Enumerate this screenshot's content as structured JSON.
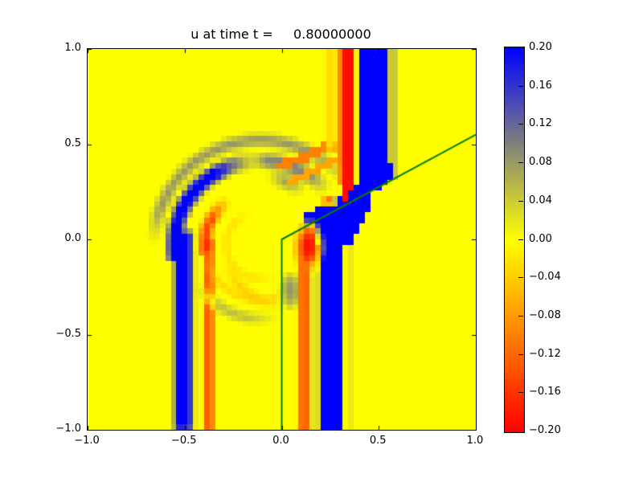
{
  "figure": {
    "background": "#ffffff",
    "frame_color": "#000000"
  },
  "chart_data": {
    "type": "heatmap",
    "title": "u at time t =     0.80000000",
    "xlabel": "",
    "ylabel": "",
    "xlim": [
      -1,
      1
    ],
    "ylim": [
      -1,
      1
    ],
    "grid": false,
    "xticks": {
      "values": [
        -1,
        -0.5,
        0,
        0.5,
        1
      ],
      "labels": [
        "−1.0",
        "−0.5",
        "0.0",
        "0.5",
        "1.0"
      ]
    },
    "yticks": {
      "values": [
        1,
        0.5,
        0,
        -0.5,
        -1
      ],
      "labels": [
        "1.0",
        "0.5",
        "0.0",
        "−0.5",
        "−1.0"
      ]
    },
    "colorbar": {
      "position": "right",
      "vmin": -0.2,
      "vmax": 0.2,
      "tick_values": [
        0.2,
        0.16,
        0.12,
        0.08,
        0.04,
        0,
        -0.04,
        -0.08,
        -0.12,
        -0.16,
        -0.2
      ],
      "tick_labels": [
        "0.20",
        "0.16",
        "0.12",
        "0.08",
        "0.04",
        "0.00",
        "−0.04",
        "−0.08",
        "−0.12",
        "−0.16",
        "−0.20"
      ],
      "gradient_stops": [
        [
          0,
          "#0000ff"
        ],
        [
          0.5,
          "#ffff00"
        ],
        [
          1,
          "#ff0000"
        ]
      ]
    },
    "field": {
      "resolution": 70,
      "background_value": 0,
      "features": [
        {
          "t": "ring",
          "c": [
            -0.11,
            -0.03
          ],
          "r": [
            0.5,
            0.6
          ],
          "a": [
            35,
            180
          ],
          "v": 0.08,
          "f": 0.045,
          "af": [
            25,
            20
          ]
        },
        {
          "t": "ring",
          "c": [
            -0.11,
            -0.03
          ],
          "r": [
            0.385,
            0.5
          ],
          "a": [
            38,
            98
          ],
          "v": 0.095,
          "f": 0.045,
          "af": [
            18,
            12
          ]
        },
        {
          "t": "ring",
          "c": [
            -0.11,
            -0.03
          ],
          "r": [
            0.385,
            0.5
          ],
          "a": [
            92,
            190
          ],
          "v": 0.2,
          "f": 0.04,
          "af": [
            30,
            0
          ]
        },
        {
          "t": "band",
          "x0": -0.57,
          "x1": -0.44,
          "y0": -1.02,
          "y1": 0.06,
          "v": 0.2,
          "f": 0.04
        },
        {
          "t": "ring",
          "c": [
            -0.11,
            -0.03
          ],
          "r": [
            0.24,
            0.335
          ],
          "a": [
            122,
            188
          ],
          "v": -0.14,
          "f": 0.04,
          "af": [
            30,
            0
          ]
        },
        {
          "t": "band",
          "x0": -0.41,
          "x1": -0.34,
          "y0": -1.02,
          "y1": 0.02,
          "v": -0.18,
          "f": 0.035
        },
        {
          "t": "ring",
          "c": [
            -0.11,
            -0.03
          ],
          "r": [
            0.14,
            0.21
          ],
          "a": [
            100,
            300
          ],
          "v": -0.04,
          "f": 0.05,
          "af": [
            40,
            40
          ]
        },
        {
          "t": "ring",
          "c": [
            -0.11,
            -0.03
          ],
          "r": [
            0.26,
            0.32
          ],
          "a": [
            190,
            330
          ],
          "v": -0.05,
          "f": 0.04,
          "af": [
            30,
            30
          ]
        },
        {
          "t": "ring",
          "c": [
            0.05,
            0.02
          ],
          "r": [
            0.33,
            0.42
          ],
          "a": [
            200,
            265
          ],
          "v": -0.045,
          "f": 0.05,
          "af": [
            25,
            25
          ]
        },
        {
          "t": "ring",
          "c": [
            -0.11,
            -0.03
          ],
          "r": [
            0.34,
            0.43
          ],
          "a": [
            210,
            285
          ],
          "v": 0.06,
          "f": 0.05,
          "af": [
            25,
            25
          ]
        },
        {
          "t": "ring",
          "c": [
            -0.11,
            -0.03
          ],
          "r": [
            0.3,
            0.42
          ],
          "a": [
            50,
            85
          ],
          "v": 0.07,
          "f": 0.05,
          "af": [
            15,
            15
          ]
        },
        {
          "t": "blob",
          "c": [
            0.05,
            -0.27
          ],
          "rx": 0.07,
          "ry": 0.11,
          "v": 0.085
        },
        {
          "t": "poly",
          "pts": [
            [
              -0.03,
              0.4
            ],
            [
              0.285,
              0.53
            ],
            [
              0.285,
              0.475
            ],
            [
              -0.01,
              0.355
            ]
          ],
          "v": -0.1
        },
        {
          "t": "poly",
          "pts": [
            [
              0.02,
              0.315
            ],
            [
              0.285,
              0.44
            ],
            [
              0.285,
              0.4
            ],
            [
              0.05,
              0.285
            ]
          ],
          "v": -0.07
        },
        {
          "t": "band",
          "x0": 0.21,
          "x1": 0.292,
          "y0": 0.45,
          "y1": 1.02,
          "v": -0.025,
          "f": 0.03
        },
        {
          "t": "poly",
          "pts": [
            [
              0.125,
              0.062
            ],
            [
              0.52,
              0.282
            ],
            [
              0.561,
              0.308
            ],
            [
              0.561,
              0.4
            ],
            [
              0.385,
              0.298
            ],
            [
              0.21,
              0.18
            ],
            [
              0.125,
              0.128
            ]
          ],
          "v": 0.2
        },
        {
          "t": "poly",
          "pts": [
            [
              0.185,
              0.098
            ],
            [
              0.43,
              0.232
            ],
            [
              0.468,
              0.258
            ],
            [
              0.438,
              0.118
            ],
            [
              0.348,
              -0.035
            ],
            [
              0.185,
              -0.035
            ]
          ],
          "v": 0.2
        },
        {
          "t": "band",
          "x0": 0.385,
          "x1": 0.561,
          "y0": 0.295,
          "y1": 1.02,
          "v": 0.2,
          "f": 0.018
        },
        {
          "t": "band",
          "x0": 0.19,
          "x1": 0.328,
          "y0": -1.02,
          "y1": 0.015,
          "v": 0.2,
          "f": 0.02
        },
        {
          "t": "band",
          "x0": 0.562,
          "x1": 0.598,
          "y0": 0.3,
          "y1": 1.02,
          "v": 0.05,
          "f": 0.015
        },
        {
          "t": "band",
          "x0": 0.328,
          "x1": 0.362,
          "y0": -1.02,
          "y1": -0.015,
          "v": 0.05,
          "f": 0.015
        },
        {
          "t": "band",
          "x0": 0.154,
          "x1": 0.19,
          "y0": -1.02,
          "y1": -0.045,
          "v": 0.09,
          "f": 0.015
        },
        {
          "t": "band",
          "x0": 0.07,
          "x1": 0.155,
          "y0": -1.02,
          "y1": -0.055,
          "v": -0.11,
          "f": 0.03
        },
        {
          "t": "band",
          "x0": 0.105,
          "x1": 0.15,
          "y0": -1.02,
          "y1": -0.13,
          "v": -0.17,
          "f": 0.04
        },
        {
          "t": "blob",
          "c": [
            0.138,
            -0.04
          ],
          "rx": 0.085,
          "ry": 0.155,
          "v": -0.11
        },
        {
          "t": "blob",
          "c": [
            0.138,
            -0.035
          ],
          "rx": 0.05,
          "ry": 0.1,
          "v": -0.19
        },
        {
          "t": "band",
          "x0": 0.292,
          "x1": 0.378,
          "y0": 0.272,
          "y1": 1.02,
          "v": -0.19,
          "f": 0.016
        },
        {
          "t": "poly",
          "pts": [
            [
              0.292,
              0.3
            ],
            [
              0.378,
              0.3
            ],
            [
              0.322,
              0.195
            ]
          ],
          "v": -0.19
        },
        {
          "t": "blob",
          "c": [
            0.245,
            0.2
          ],
          "rx": 0.05,
          "ry": 0.028,
          "v": -0.14
        }
      ]
    },
    "interface_line": {
      "points": [
        [
          0,
          -1
        ],
        [
          0,
          0
        ],
        [
          1,
          0.55
        ]
      ],
      "color": "#008000",
      "width": 2
    }
  }
}
